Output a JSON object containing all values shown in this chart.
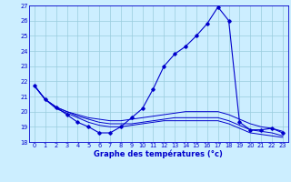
{
  "xlabel": "Graphe des températures (°c)",
  "xlim": [
    -0.5,
    23.5
  ],
  "ylim": [
    18,
    27
  ],
  "yticks": [
    18,
    19,
    20,
    21,
    22,
    23,
    24,
    25,
    26,
    27
  ],
  "xticks": [
    0,
    1,
    2,
    3,
    4,
    5,
    6,
    7,
    8,
    9,
    10,
    11,
    12,
    13,
    14,
    15,
    16,
    17,
    18,
    19,
    20,
    21,
    22,
    23
  ],
  "background_color": "#cceeff",
  "grid_color": "#99ccdd",
  "line_color": "#0000cc",
  "series": {
    "main": {
      "x": [
        0,
        1,
        2,
        3,
        4,
        5,
        6,
        7,
        8,
        9,
        10,
        11,
        12,
        13,
        14,
        15,
        16,
        17,
        18,
        19,
        20,
        21,
        22,
        23
      ],
      "y": [
        21.7,
        20.8,
        20.3,
        19.8,
        19.3,
        19.0,
        18.6,
        18.6,
        19.0,
        19.6,
        20.2,
        21.5,
        23.0,
        23.8,
        24.3,
        25.0,
        25.8,
        26.9,
        26.0,
        19.3,
        18.8,
        18.8,
        18.9,
        18.6
      ]
    },
    "smooth1": {
      "x": [
        0,
        1,
        2,
        3,
        4,
        5,
        6,
        7,
        8,
        9,
        10,
        11,
        12,
        13,
        14,
        15,
        16,
        17,
        18,
        19,
        20,
        21,
        22,
        23
      ],
      "y": [
        21.7,
        20.8,
        20.3,
        20.0,
        19.8,
        19.6,
        19.5,
        19.4,
        19.4,
        19.5,
        19.6,
        19.7,
        19.8,
        19.9,
        20.0,
        20.0,
        20.0,
        20.0,
        19.8,
        19.5,
        19.2,
        19.0,
        18.9,
        18.7
      ]
    },
    "smooth2": {
      "x": [
        0,
        1,
        2,
        3,
        4,
        5,
        6,
        7,
        8,
        9,
        10,
        11,
        12,
        13,
        14,
        15,
        16,
        17,
        18,
        19,
        20,
        21,
        22,
        23
      ],
      "y": [
        21.7,
        20.8,
        20.3,
        20.0,
        19.7,
        19.5,
        19.3,
        19.2,
        19.2,
        19.2,
        19.3,
        19.4,
        19.5,
        19.6,
        19.6,
        19.6,
        19.6,
        19.6,
        19.4,
        19.1,
        18.8,
        18.7,
        18.6,
        18.4
      ]
    },
    "smooth3": {
      "x": [
        0,
        1,
        2,
        3,
        4,
        5,
        6,
        7,
        8,
        9,
        10,
        11,
        12,
        13,
        14,
        15,
        16,
        17,
        18,
        19,
        20,
        21,
        22,
        23
      ],
      "y": [
        21.7,
        20.8,
        20.2,
        19.9,
        19.6,
        19.3,
        19.1,
        19.0,
        19.0,
        19.1,
        19.2,
        19.3,
        19.4,
        19.4,
        19.4,
        19.4,
        19.4,
        19.4,
        19.2,
        18.9,
        18.6,
        18.5,
        18.4,
        18.3
      ]
    }
  }
}
